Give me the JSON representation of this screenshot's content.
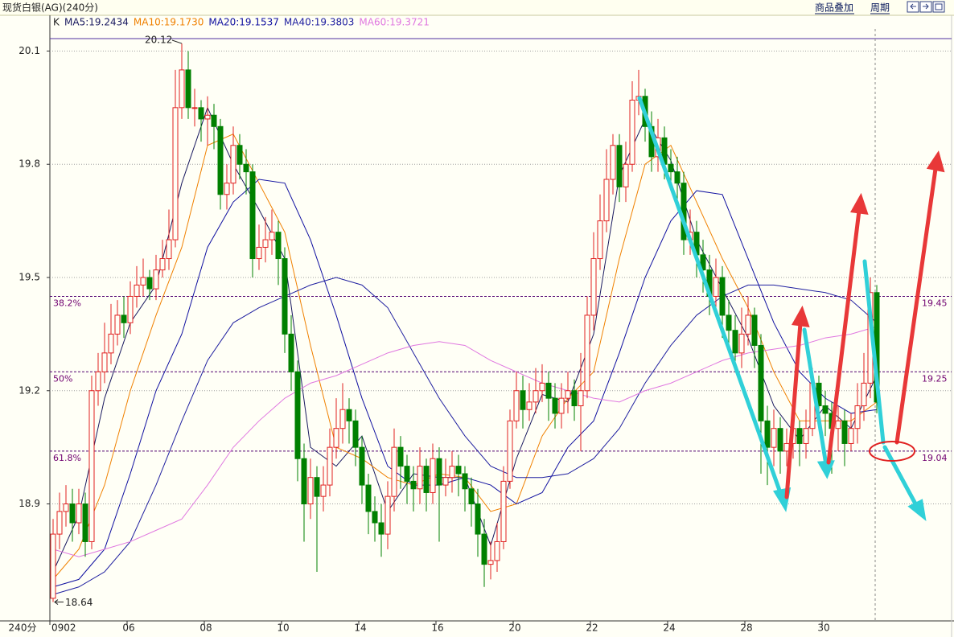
{
  "header": {
    "title": "现货白银(AG)(240分)",
    "menu": [
      "商品叠加",
      "周期"
    ]
  },
  "chart_data": {
    "type": "candlestick",
    "label": "K",
    "period_label": "240分",
    "categories": [
      "0902",
      null,
      null,
      null,
      null,
      null,
      null,
      null,
      null,
      null,
      null,
      null,
      "06",
      null,
      null,
      null,
      null,
      null,
      null,
      null,
      null,
      null,
      null,
      null,
      "08",
      null,
      null,
      null,
      null,
      null,
      null,
      null,
      null,
      null,
      null,
      null,
      "10",
      null,
      null,
      null,
      null,
      null,
      null,
      null,
      null,
      null,
      null,
      null,
      "14",
      null,
      null,
      null,
      null,
      null,
      null,
      null,
      null,
      null,
      null,
      null,
      "16",
      null,
      null,
      null,
      null,
      null,
      null,
      null,
      null,
      null,
      null,
      null,
      "20",
      null,
      null,
      null,
      null,
      null,
      null,
      null,
      null,
      null,
      null,
      null,
      "22",
      null,
      null,
      null,
      null,
      null,
      null,
      null,
      null,
      null,
      null,
      null,
      "24",
      null,
      null,
      null,
      null,
      null,
      null,
      null,
      null,
      null,
      null,
      null,
      "28",
      null,
      null,
      null,
      null,
      null,
      null,
      null,
      null,
      null,
      null,
      null,
      "30",
      null,
      null,
      null,
      null,
      null,
      null,
      null,
      null
    ],
    "open": [
      18.65,
      18.82,
      18.88,
      18.9,
      18.85,
      18.9,
      18.8,
      19.2,
      19.25,
      19.3,
      19.35,
      19.4,
      19.38,
      19.45,
      19.48,
      19.5,
      19.47,
      19.52,
      19.55,
      19.6,
      19.95,
      20.05,
      19.95,
      19.95,
      19.92,
      19.93,
      19.9,
      19.72,
      19.75,
      19.85,
      19.8,
      19.78,
      19.55,
      19.58,
      19.6,
      19.62,
      19.55,
      19.35,
      19.25,
      19.02,
      18.9,
      18.97,
      18.92,
      18.95,
      19.05,
      19.1,
      19.15,
      19.12,
      19.05,
      18.95,
      18.88,
      18.85,
      18.82,
      18.92,
      19.05,
      19.0,
      18.96,
      18.94,
      19.0,
      18.93,
      19.02,
      18.95,
      18.97,
      19.0,
      18.98,
      18.94,
      18.9,
      18.82,
      18.74,
      18.75,
      18.8,
      18.96,
      19.12,
      19.2,
      19.15,
      19.17,
      19.2,
      19.22,
      19.18,
      19.14,
      19.18,
      19.2,
      19.16,
      19.2,
      19.4,
      19.55,
      19.65,
      19.76,
      19.85,
      19.74,
      19.8,
      19.97,
      19.98,
      19.9,
      19.82,
      19.87,
      19.8,
      19.78,
      19.75,
      19.6,
      19.62,
      19.56,
      19.52,
      19.45,
      19.5,
      19.4,
      19.36,
      19.3,
      19.35,
      19.4,
      19.32,
      19.12,
      19.05,
      19.1,
      19.04,
      19.06,
      19.1,
      19.06,
      19.1,
      19.22,
      19.16,
      19.14,
      19.1,
      19.12,
      19.06,
      19.1,
      19.16,
      19.22,
      19.46
    ],
    "high": [
      18.86,
      18.93,
      18.95,
      18.94,
      18.94,
      18.93,
      19.24,
      19.3,
      19.38,
      19.43,
      19.44,
      19.45,
      19.49,
      19.53,
      19.55,
      19.52,
      19.56,
      19.6,
      19.68,
      20.05,
      20.12,
      20.1,
      20.0,
      19.97,
      19.98,
      19.96,
      19.92,
      19.8,
      19.9,
      19.88,
      19.84,
      19.8,
      19.64,
      19.66,
      19.68,
      19.65,
      19.58,
      19.4,
      19.28,
      19.06,
      19.02,
      19.0,
      19.0,
      19.1,
      19.18,
      19.22,
      19.18,
      19.15,
      19.08,
      18.98,
      18.92,
      18.9,
      18.96,
      19.1,
      19.08,
      19.03,
      19.0,
      19.05,
      19.02,
      19.06,
      19.05,
      19.02,
      19.04,
      19.03,
      19.0,
      18.97,
      18.94,
      18.86,
      18.8,
      18.85,
      19.0,
      19.15,
      19.25,
      19.24,
      19.22,
      19.26,
      19.27,
      19.25,
      19.22,
      19.22,
      19.25,
      19.23,
      19.3,
      19.45,
      19.62,
      19.72,
      19.84,
      19.88,
      19.88,
      19.86,
      20.02,
      20.05,
      20.0,
      19.94,
      19.92,
      19.9,
      19.84,
      19.82,
      19.78,
      19.68,
      19.65,
      19.6,
      19.56,
      19.55,
      19.53,
      19.44,
      19.4,
      19.42,
      19.45,
      19.42,
      19.35,
      19.16,
      19.15,
      19.13,
      19.1,
      19.14,
      19.12,
      19.15,
      19.26,
      19.24,
      19.2,
      19.17,
      19.16,
      19.15,
      19.14,
      19.22,
      19.3,
      19.5,
      19.48
    ],
    "low": [
      18.64,
      18.78,
      18.84,
      18.8,
      18.82,
      18.76,
      18.78,
      19.16,
      19.22,
      19.27,
      19.32,
      19.34,
      19.35,
      19.42,
      19.45,
      19.44,
      19.44,
      19.5,
      19.52,
      19.58,
      19.92,
      19.92,
      19.9,
      19.86,
      19.85,
      19.84,
      19.68,
      19.68,
      19.72,
      19.76,
      19.72,
      19.5,
      19.52,
      19.54,
      19.56,
      19.48,
      19.3,
      19.2,
      18.96,
      18.8,
      18.86,
      18.72,
      18.88,
      18.92,
      19.02,
      19.06,
      19.06,
      19.0,
      18.9,
      18.82,
      18.8,
      18.76,
      18.78,
      18.88,
      18.94,
      18.9,
      18.88,
      18.9,
      18.88,
      18.9,
      18.8,
      18.92,
      18.93,
      18.92,
      18.88,
      18.84,
      18.76,
      18.68,
      18.7,
      18.72,
      18.78,
      18.94,
      19.1,
      19.1,
      19.12,
      19.14,
      19.17,
      19.12,
      19.1,
      19.1,
      19.14,
      19.12,
      19.04,
      19.18,
      19.36,
      19.52,
      19.62,
      19.72,
      19.7,
      19.7,
      19.78,
      19.93,
      19.86,
      19.78,
      19.78,
      19.76,
      19.74,
      19.7,
      19.56,
      19.56,
      19.5,
      19.46,
      19.4,
      19.4,
      19.34,
      19.3,
      19.25,
      19.26,
      19.32,
      19.26,
      18.98,
      18.95,
      19.0,
      18.98,
      19.0,
      19.02,
      19.0,
      19.02,
      19.08,
      19.1,
      19.08,
      18.98,
      19.04,
      19.0,
      19.04,
      19.06,
      19.12,
      19.18,
      19.14
    ],
    "close": [
      18.82,
      18.88,
      18.9,
      18.85,
      18.9,
      18.8,
      19.2,
      19.25,
      19.3,
      19.35,
      19.4,
      19.38,
      19.45,
      19.48,
      19.5,
      19.47,
      19.52,
      19.55,
      19.6,
      19.95,
      20.05,
      19.95,
      19.95,
      19.92,
      19.93,
      19.9,
      19.72,
      19.75,
      19.85,
      19.8,
      19.78,
      19.55,
      19.58,
      19.6,
      19.62,
      19.55,
      19.35,
      19.25,
      19.02,
      18.9,
      18.97,
      18.92,
      18.95,
      19.05,
      19.1,
      19.15,
      19.12,
      19.05,
      18.95,
      18.88,
      18.85,
      18.82,
      18.92,
      19.05,
      19.0,
      18.96,
      18.94,
      19.0,
      18.93,
      19.02,
      18.95,
      18.97,
      19.0,
      18.98,
      18.94,
      18.9,
      18.82,
      18.74,
      18.75,
      18.8,
      18.96,
      19.12,
      19.2,
      19.15,
      19.17,
      19.2,
      19.22,
      19.18,
      19.14,
      19.18,
      19.2,
      19.16,
      19.2,
      19.4,
      19.55,
      19.65,
      19.76,
      19.85,
      19.74,
      19.8,
      19.97,
      19.98,
      19.9,
      19.82,
      19.87,
      19.8,
      19.78,
      19.75,
      19.6,
      19.62,
      19.56,
      19.52,
      19.45,
      19.5,
      19.4,
      19.36,
      19.3,
      19.35,
      19.4,
      19.32,
      19.12,
      19.05,
      19.1,
      19.04,
      19.06,
      19.1,
      19.06,
      19.1,
      19.22,
      19.16,
      19.14,
      19.1,
      19.12,
      19.06,
      19.1,
      19.16,
      19.22,
      19.46,
      19.17
    ],
    "up_color": "#e02020",
    "down_color": "#008000",
    "ylim": [
      18.59,
      20.15
    ],
    "yticks": [
      20.1,
      19.8,
      19.5,
      19.2,
      18.9
    ],
    "grid": true,
    "high_label": 20.12,
    "low_label": 18.64,
    "levels": [
      {
        "ratio": "38.2%",
        "value": 19.45
      },
      {
        "ratio": "50%",
        "value": 19.25
      },
      {
        "ratio": "61.8%",
        "value": 19.04
      }
    ],
    "series": [
      {
        "name": "MA5:19.2434",
        "color": "#1a1a60",
        "x": [
          0,
          4,
          8,
          12,
          16,
          20,
          24,
          28,
          32,
          36,
          40,
          44,
          48,
          52,
          56,
          60,
          64,
          68,
          72,
          76,
          80,
          84,
          88,
          92,
          96,
          100,
          104,
          108,
          112,
          116,
          120,
          124,
          128
        ],
        "values": [
          18.72,
          18.87,
          19.18,
          19.38,
          19.48,
          19.75,
          19.95,
          19.8,
          19.68,
          19.55,
          19.05,
          19.0,
          19.08,
          18.88,
          18.98,
          18.97,
          18.97,
          18.79,
          19.02,
          19.19,
          19.17,
          19.35,
          19.77,
          19.92,
          19.81,
          19.6,
          19.47,
          19.34,
          19.16,
          19.07,
          19.16,
          19.1,
          19.24
        ]
      },
      {
        "name": "MA10:19.1730",
        "color": "#f08000",
        "x": [
          0,
          4,
          8,
          12,
          16,
          20,
          24,
          28,
          32,
          36,
          40,
          44,
          48,
          52,
          56,
          60,
          64,
          68,
          72,
          76,
          80,
          84,
          88,
          92,
          96,
          100,
          104,
          108,
          112,
          116,
          120,
          124,
          128
        ],
        "values": [
          18.7,
          18.78,
          18.95,
          19.2,
          19.4,
          19.58,
          19.85,
          19.88,
          19.75,
          19.62,
          19.32,
          19.05,
          19.02,
          18.97,
          18.95,
          18.98,
          18.97,
          18.88,
          18.9,
          19.08,
          19.18,
          19.25,
          19.55,
          19.8,
          19.85,
          19.7,
          19.55,
          19.42,
          19.25,
          19.12,
          19.12,
          19.12,
          19.17
        ]
      },
      {
        "name": "MA20:19.1537",
        "color": "#1010a0",
        "x": [
          0,
          4,
          8,
          12,
          16,
          20,
          24,
          28,
          32,
          36,
          40,
          44,
          48,
          52,
          56,
          60,
          64,
          68,
          72,
          76,
          80,
          84,
          88,
          92,
          96,
          100,
          104,
          108,
          112,
          116,
          120,
          124,
          128
        ],
        "values": [
          18.68,
          18.7,
          18.78,
          18.98,
          19.2,
          19.35,
          19.58,
          19.7,
          19.76,
          19.75,
          19.6,
          19.4,
          19.18,
          19.0,
          18.95,
          18.95,
          18.97,
          18.95,
          18.9,
          18.93,
          19.05,
          19.12,
          19.3,
          19.5,
          19.65,
          19.73,
          19.72,
          19.55,
          19.38,
          19.25,
          19.18,
          19.14,
          19.15
        ]
      },
      {
        "name": "MA40:19.3803",
        "color": "#2020a0",
        "x": [
          0,
          4,
          8,
          12,
          16,
          20,
          24,
          28,
          32,
          36,
          40,
          44,
          48,
          52,
          56,
          60,
          64,
          68,
          72,
          76,
          80,
          84,
          88,
          92,
          96,
          100,
          104,
          108,
          112,
          116,
          120,
          124,
          128
        ],
        "values": [
          18.66,
          18.68,
          18.72,
          18.8,
          18.95,
          19.12,
          19.28,
          19.38,
          19.42,
          19.45,
          19.48,
          19.5,
          19.48,
          19.42,
          19.3,
          19.18,
          19.08,
          19.0,
          18.97,
          18.97,
          18.98,
          19.02,
          19.1,
          19.22,
          19.32,
          19.4,
          19.45,
          19.48,
          19.48,
          19.47,
          19.46,
          19.44,
          19.38
        ]
      },
      {
        "name": "MA60:19.3721",
        "color": "#e078e0",
        "x": [
          0,
          4,
          8,
          12,
          16,
          20,
          24,
          28,
          32,
          36,
          40,
          44,
          48,
          52,
          56,
          60,
          64,
          68,
          72,
          76,
          80,
          84,
          88,
          92,
          96,
          100,
          104,
          108,
          112,
          116,
          120,
          124,
          128
        ],
        "values": [
          18.78,
          18.76,
          18.78,
          18.8,
          18.83,
          18.86,
          18.95,
          19.05,
          19.12,
          19.18,
          19.22,
          19.24,
          19.27,
          19.3,
          19.32,
          19.33,
          19.32,
          19.28,
          19.25,
          19.22,
          19.2,
          19.18,
          19.17,
          19.2,
          19.22,
          19.25,
          19.28,
          19.3,
          19.31,
          19.32,
          19.34,
          19.35,
          19.37
        ]
      }
    ]
  }
}
